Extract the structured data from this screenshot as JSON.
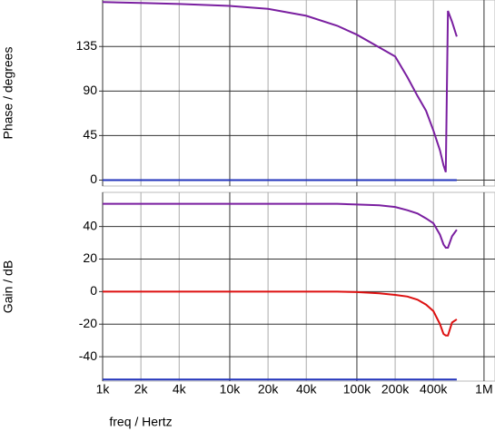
{
  "chart_data": [
    {
      "type": "line",
      "ylabel": "Phase / degrees",
      "xscale": "log",
      "grid": true,
      "xlim": [
        1000,
        1220000
      ],
      "ylim": [
        -6,
        182
      ],
      "yticks": [
        0,
        45,
        90,
        135
      ],
      "x": [
        1000,
        2000,
        4000,
        10000,
        20000,
        40000,
        70000,
        100000,
        150000,
        200000,
        250000,
        300000,
        350000,
        400000,
        450000,
        480000,
        500000,
        520000,
        560000,
        610000
      ],
      "series": [
        {
          "color": "#7a1fa0",
          "values": [
            180,
            179,
            178,
            176,
            173,
            166,
            156,
            147,
            134,
            125,
            104,
            85,
            70,
            50,
            30,
            15,
            8,
            171,
            160,
            145
          ]
        },
        {
          "color": "#2233bb",
          "values": [
            0,
            0,
            0,
            0,
            0,
            0,
            0,
            0,
            0,
            0,
            0,
            0,
            0,
            0,
            0,
            0,
            0,
            0,
            0,
            0
          ]
        }
      ]
    },
    {
      "type": "line",
      "ylabel": "Gain / dB",
      "xlabel": "freq / Hertz",
      "xscale": "log",
      "grid": true,
      "xlim": [
        1000,
        1220000
      ],
      "ylim": [
        -55,
        61
      ],
      "yticks": [
        -40,
        -20,
        0,
        20,
        40
      ],
      "xticks": [
        {
          "value": 1000,
          "label": "1k"
        },
        {
          "value": 2000,
          "label": "2k"
        },
        {
          "value": 4000,
          "label": "4k"
        },
        {
          "value": 10000,
          "label": "10k"
        },
        {
          "value": 20000,
          "label": "20k"
        },
        {
          "value": 40000,
          "label": "40k"
        },
        {
          "value": 100000,
          "label": "100k"
        },
        {
          "value": 200000,
          "label": "200k"
        },
        {
          "value": 400000,
          "label": "400k"
        },
        {
          "value": 1000000,
          "label": "1M"
        }
      ],
      "x": [
        1000,
        2000,
        4000,
        10000,
        20000,
        40000,
        70000,
        100000,
        150000,
        200000,
        250000,
        300000,
        350000,
        400000,
        450000,
        480000,
        500000,
        520000,
        560000,
        610000
      ],
      "series": [
        {
          "color": "#7a1fa0",
          "values": [
            54,
            54,
            54,
            54,
            54,
            54,
            54,
            53.5,
            53,
            52,
            50,
            48,
            45,
            42,
            35,
            29,
            27,
            27,
            34,
            38
          ]
        },
        {
          "color": "#dd1111",
          "values": [
            0,
            0,
            0,
            0,
            0,
            0,
            0,
            -0.3,
            -1,
            -2,
            -3,
            -5,
            -8,
            -12,
            -20,
            -26,
            -27,
            -27,
            -19,
            -17
          ]
        },
        {
          "color": "#2233bb",
          "values": [
            -54,
            -54,
            -54,
            -54,
            -54,
            -54,
            -54,
            -54,
            -54,
            -54,
            -54,
            -54,
            -54,
            -54,
            -54,
            -54,
            -54,
            -54,
            -54,
            -54
          ]
        }
      ]
    }
  ]
}
